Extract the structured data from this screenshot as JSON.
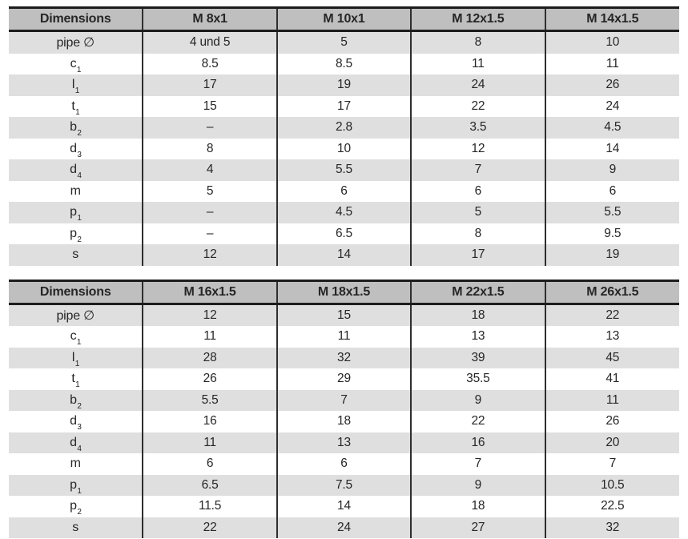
{
  "colors": {
    "header_bg": "#bfbfbf",
    "row_alt_bg": "#dfdfdf",
    "row_bg": "#ffffff",
    "thick_rule": "#1c1c1c",
    "column_divider": "#2e2e2e",
    "text": "#262626"
  },
  "tables": [
    {
      "name": "dimensions-table-small-threads",
      "headers": [
        "Dimensions",
        "M 8x1",
        "M 10x1",
        "M 12x1.5",
        "M 14x1.5"
      ],
      "rows": [
        {
          "label": {
            "base": "pipe ∅",
            "sub": ""
          },
          "values": [
            "4 und 5",
            "5",
            "8",
            "10"
          ]
        },
        {
          "label": {
            "base": "c",
            "sub": "1"
          },
          "values": [
            "8.5",
            "8.5",
            "11",
            "11"
          ]
        },
        {
          "label": {
            "base": "l",
            "sub": "1"
          },
          "values": [
            "17",
            "19",
            "24",
            "26"
          ]
        },
        {
          "label": {
            "base": "t",
            "sub": "1"
          },
          "values": [
            "15",
            "17",
            "22",
            "24"
          ]
        },
        {
          "label": {
            "base": "b",
            "sub": "2"
          },
          "values": [
            "–",
            "2.8",
            "3.5",
            "4.5"
          ]
        },
        {
          "label": {
            "base": "d",
            "sub": "3"
          },
          "values": [
            "8",
            "10",
            "12",
            "14"
          ]
        },
        {
          "label": {
            "base": "d",
            "sub": "4"
          },
          "values": [
            "4",
            "5.5",
            "7",
            "9"
          ]
        },
        {
          "label": {
            "base": "m",
            "sub": ""
          },
          "values": [
            "5",
            "6",
            "6",
            "6"
          ]
        },
        {
          "label": {
            "base": "p",
            "sub": "1"
          },
          "values": [
            "–",
            "4.5",
            "5",
            "5.5"
          ]
        },
        {
          "label": {
            "base": "p",
            "sub": "2"
          },
          "values": [
            "–",
            "6.5",
            "8",
            "9.5"
          ]
        },
        {
          "label": {
            "base": "s",
            "sub": ""
          },
          "values": [
            "12",
            "14",
            "17",
            "19"
          ]
        }
      ]
    },
    {
      "name": "dimensions-table-large-threads",
      "headers": [
        "Dimensions",
        "M 16x1.5",
        "M 18x1.5",
        "M 22x1.5",
        "M 26x1.5"
      ],
      "rows": [
        {
          "label": {
            "base": "pipe ∅",
            "sub": ""
          },
          "values": [
            "12",
            "15",
            "18",
            "22"
          ]
        },
        {
          "label": {
            "base": "c",
            "sub": "1"
          },
          "values": [
            "11",
            "11",
            "13",
            "13"
          ]
        },
        {
          "label": {
            "base": "l",
            "sub": "1"
          },
          "values": [
            "28",
            "32",
            "39",
            "45"
          ]
        },
        {
          "label": {
            "base": "t",
            "sub": "1"
          },
          "values": [
            "26",
            "29",
            "35.5",
            "41"
          ]
        },
        {
          "label": {
            "base": "b",
            "sub": "2"
          },
          "values": [
            "5.5",
            "7",
            "9",
            "11"
          ]
        },
        {
          "label": {
            "base": "d",
            "sub": "3"
          },
          "values": [
            "16",
            "18",
            "22",
            "26"
          ]
        },
        {
          "label": {
            "base": "d",
            "sub": "4"
          },
          "values": [
            "11",
            "13",
            "16",
            "20"
          ]
        },
        {
          "label": {
            "base": "m",
            "sub": ""
          },
          "values": [
            "6",
            "6",
            "7",
            "7"
          ]
        },
        {
          "label": {
            "base": "p",
            "sub": "1"
          },
          "values": [
            "6.5",
            "7.5",
            "9",
            "10.5"
          ]
        },
        {
          "label": {
            "base": "p",
            "sub": "2"
          },
          "values": [
            "11.5",
            "14",
            "18",
            "22.5"
          ]
        },
        {
          "label": {
            "base": "s",
            "sub": ""
          },
          "values": [
            "22",
            "24",
            "27",
            "32"
          ]
        }
      ]
    }
  ]
}
